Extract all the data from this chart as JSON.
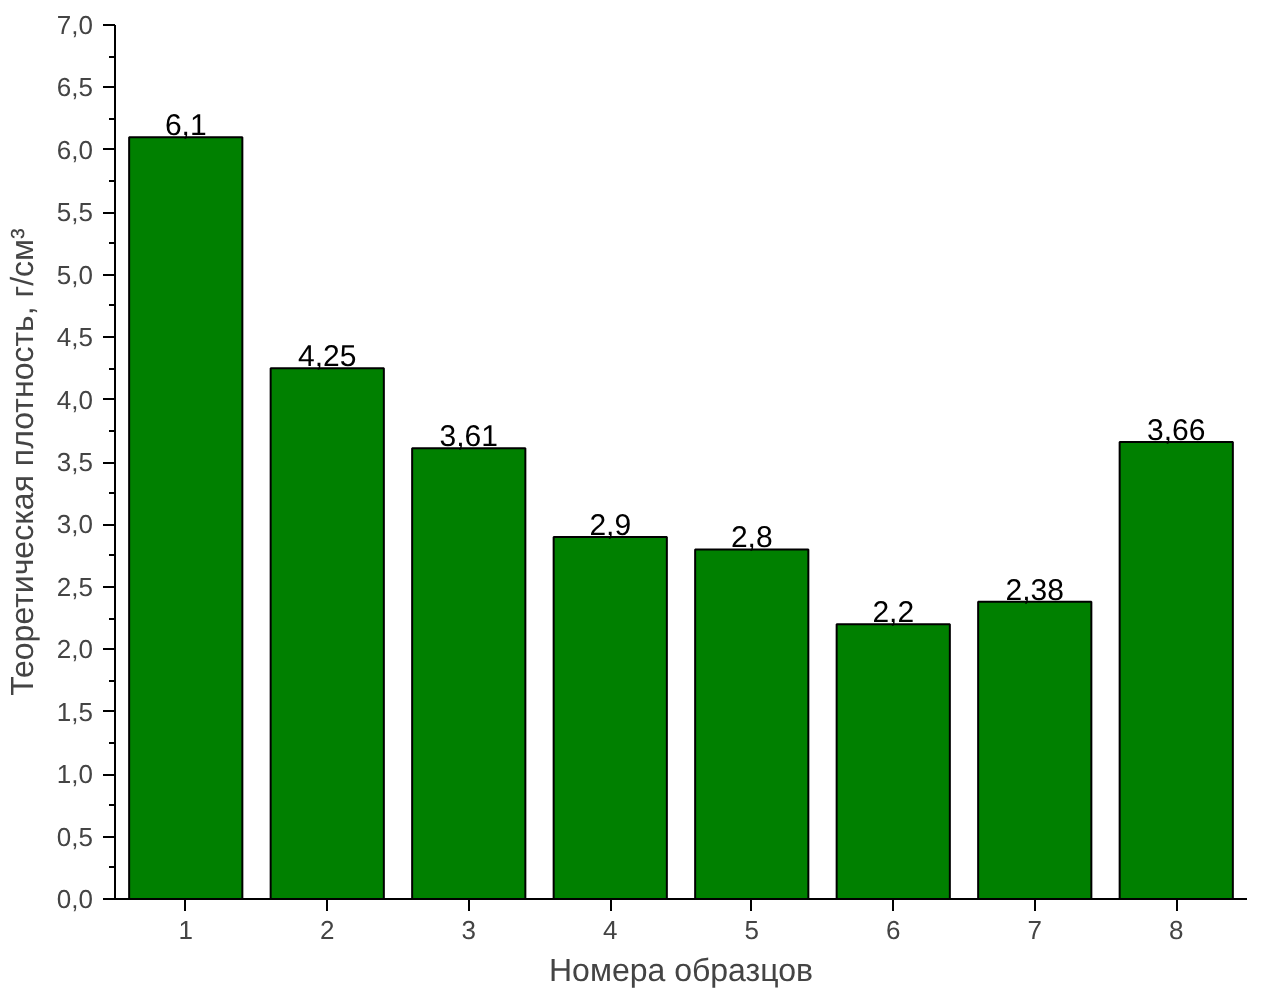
{
  "chart_data": {
    "type": "bar",
    "xlabel": "Номера образцов",
    "ylabel": "Теоретическая плотность, г/см³",
    "categories": [
      "1",
      "2",
      "3",
      "4",
      "5",
      "6",
      "7",
      "8"
    ],
    "values": [
      6.1,
      4.25,
      3.61,
      2.9,
      2.8,
      2.2,
      2.38,
      3.66
    ],
    "value_labels": [
      "6,1",
      "4,25",
      "3,61",
      "2,9",
      "2,8",
      "2,2",
      "2,38",
      "3,66"
    ],
    "color": "#008000",
    "ylim": [
      0,
      7
    ],
    "yticks": [
      {
        "value": 0,
        "label": "0,0"
      },
      {
        "value": 0.5,
        "label": "0,5"
      },
      {
        "value": 1,
        "label": "1,0"
      },
      {
        "value": 1.5,
        "label": "1,5"
      },
      {
        "value": 2,
        "label": "2,0"
      },
      {
        "value": 2.5,
        "label": "2,5"
      },
      {
        "value": 3,
        "label": "3,0"
      },
      {
        "value": 3.5,
        "label": "3,5"
      },
      {
        "value": 4,
        "label": "4,0"
      },
      {
        "value": 4.5,
        "label": "4,5"
      },
      {
        "value": 5,
        "label": "5,0"
      },
      {
        "value": 5.5,
        "label": "5,5"
      },
      {
        "value": 6,
        "label": "6,0"
      },
      {
        "value": 6.5,
        "label": "6,5"
      },
      {
        "value": 7,
        "label": "7,0"
      }
    ],
    "grid": false
  }
}
